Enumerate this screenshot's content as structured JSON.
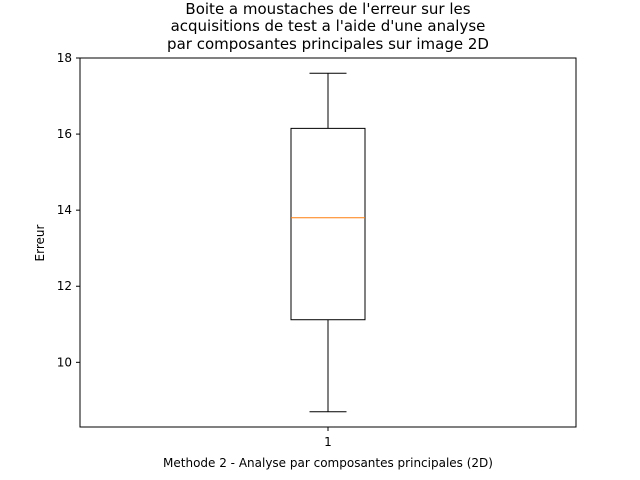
{
  "chart_data": {
    "type": "box",
    "title_lines": [
      "Boite a moustaches de l'erreur sur les",
      "acquisitions de test a l'aide d'une analyse",
      "par composantes principales sur image 2D"
    ],
    "xlabel": "Methode 2 - Analyse par composantes principales (2D)",
    "ylabel": "Erreur",
    "categories": [
      "1"
    ],
    "ylim": [
      8.3,
      18
    ],
    "yticks": [
      "10",
      "12",
      "14",
      "16",
      "18"
    ],
    "series": [
      {
        "whisker_low": 8.7,
        "q1": 11.12,
        "median": 13.8,
        "q3": 16.15,
        "whisker_high": 17.6
      }
    ],
    "colors": {
      "box": "#000000",
      "median": "#ff7f0e"
    },
    "grid": false,
    "legend": "none"
  }
}
